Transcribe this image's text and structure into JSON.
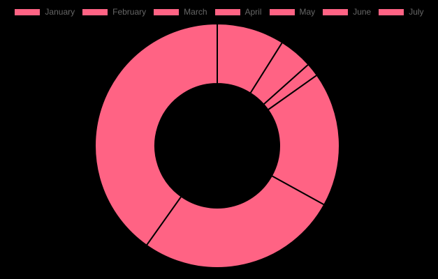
{
  "chart_data": {
    "type": "doughnut",
    "labels": [
      "January",
      "February",
      "March",
      "April",
      "May",
      "June",
      "July"
    ],
    "values": [
      10,
      5,
      2,
      20,
      30,
      45,
      0
    ],
    "slice_color": "#ff6384",
    "border_color": "#000000",
    "legend_position": "top",
    "title": ""
  }
}
